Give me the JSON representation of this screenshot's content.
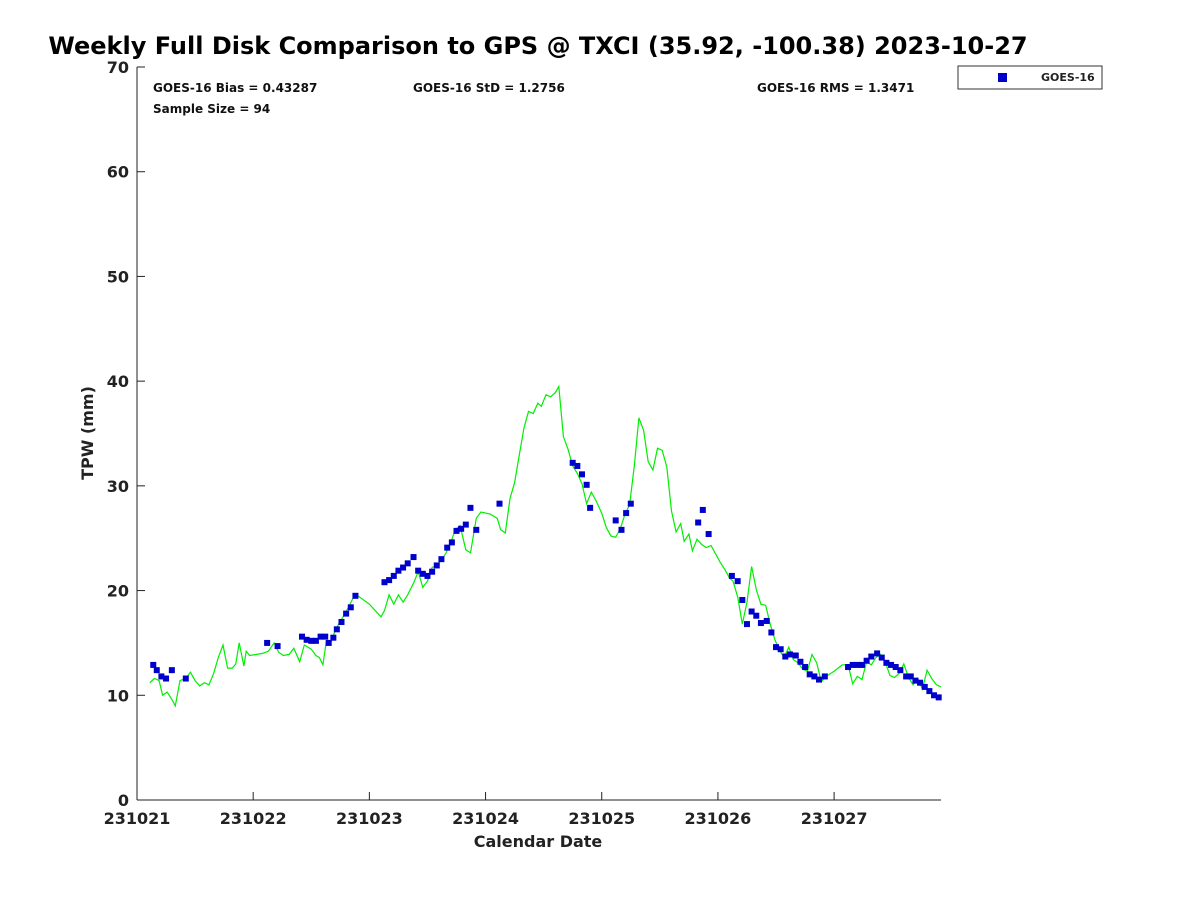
{
  "chart_data": {
    "type": "scatter",
    "title": "Weekly Full Disk Comparison to GPS @ TXCI (35.92, -100.38) 2023-10-27",
    "xlabel": "Calendar Date",
    "ylabel": "TPW (mm)",
    "xlim": [
      21.0,
      27.92
    ],
    "ylim": [
      0,
      70
    ],
    "x_tick_values": [
      21,
      22,
      23,
      24,
      25,
      26,
      27
    ],
    "x_tick_labels": [
      "231021",
      "231022",
      "231023",
      "231024",
      "231025",
      "231026",
      "231027"
    ],
    "y_ticks": [
      0,
      10,
      20,
      30,
      40,
      50,
      60,
      70
    ],
    "grid": false,
    "legend": {
      "position": "top-right",
      "entries": [
        "GOES-16"
      ]
    },
    "stats": {
      "bias": "GOES-16 Bias = 0.43287",
      "std": "GOES-16 StD = 1.2756",
      "rms": "GOES-16 RMS = 1.3471",
      "sample_size": "Sample Size = 94"
    },
    "series": [
      {
        "name": "GOES-16",
        "kind": "scatter",
        "color": "#0000cc",
        "points": [
          [
            21.14,
            12.9
          ],
          [
            21.17,
            12.4
          ],
          [
            21.21,
            11.8
          ],
          [
            21.25,
            11.6
          ],
          [
            21.3,
            12.4
          ],
          [
            21.42,
            11.6
          ],
          [
            22.12,
            15.0
          ],
          [
            22.21,
            14.7
          ],
          [
            22.42,
            15.6
          ],
          [
            22.46,
            15.3
          ],
          [
            22.5,
            15.2
          ],
          [
            22.54,
            15.2
          ],
          [
            22.58,
            15.6
          ],
          [
            22.62,
            15.6
          ],
          [
            22.65,
            15.0
          ],
          [
            22.69,
            15.5
          ],
          [
            22.72,
            16.3
          ],
          [
            22.76,
            17.0
          ],
          [
            22.8,
            17.8
          ],
          [
            22.84,
            18.4
          ],
          [
            22.88,
            19.5
          ],
          [
            23.13,
            20.8
          ],
          [
            23.17,
            21.0
          ],
          [
            23.21,
            21.4
          ],
          [
            23.25,
            21.9
          ],
          [
            23.29,
            22.2
          ],
          [
            23.33,
            22.6
          ],
          [
            23.38,
            23.2
          ],
          [
            23.42,
            21.9
          ],
          [
            23.46,
            21.6
          ],
          [
            23.5,
            21.4
          ],
          [
            23.54,
            21.8
          ],
          [
            23.58,
            22.4
          ],
          [
            23.62,
            23.0
          ],
          [
            23.67,
            24.1
          ],
          [
            23.71,
            24.6
          ],
          [
            23.75,
            25.7
          ],
          [
            23.79,
            25.9
          ],
          [
            23.83,
            26.3
          ],
          [
            23.87,
            27.9
          ],
          [
            23.92,
            25.8
          ],
          [
            24.12,
            28.3
          ],
          [
            24.75,
            32.2
          ],
          [
            24.79,
            31.9
          ],
          [
            24.83,
            31.1
          ],
          [
            24.87,
            30.1
          ],
          [
            24.9,
            27.9
          ],
          [
            25.12,
            26.7
          ],
          [
            25.17,
            25.8
          ],
          [
            25.21,
            27.4
          ],
          [
            25.25,
            28.3
          ],
          [
            25.83,
            26.5
          ],
          [
            25.87,
            27.7
          ],
          [
            25.92,
            25.4
          ],
          [
            26.12,
            21.4
          ],
          [
            26.17,
            20.9
          ],
          [
            26.21,
            19.1
          ],
          [
            26.25,
            16.8
          ],
          [
            26.29,
            18.0
          ],
          [
            26.33,
            17.6
          ],
          [
            26.37,
            16.9
          ],
          [
            26.42,
            17.1
          ],
          [
            26.46,
            16.0
          ],
          [
            26.5,
            14.6
          ],
          [
            26.54,
            14.4
          ],
          [
            26.58,
            13.7
          ],
          [
            26.62,
            13.9
          ],
          [
            26.67,
            13.8
          ],
          [
            26.71,
            13.2
          ],
          [
            26.75,
            12.7
          ],
          [
            26.79,
            12.0
          ],
          [
            26.83,
            11.8
          ],
          [
            26.87,
            11.5
          ],
          [
            26.92,
            11.8
          ],
          [
            27.12,
            12.7
          ],
          [
            27.16,
            12.9
          ],
          [
            27.2,
            12.9
          ],
          [
            27.24,
            12.9
          ],
          [
            27.28,
            13.3
          ],
          [
            27.32,
            13.7
          ],
          [
            27.37,
            14.0
          ],
          [
            27.41,
            13.6
          ],
          [
            27.45,
            13.1
          ],
          [
            27.49,
            12.9
          ],
          [
            27.53,
            12.7
          ],
          [
            27.57,
            12.4
          ],
          [
            27.62,
            11.8
          ],
          [
            27.66,
            11.8
          ],
          [
            27.7,
            11.4
          ],
          [
            27.74,
            11.2
          ],
          [
            27.78,
            10.8
          ],
          [
            27.82,
            10.4
          ],
          [
            27.86,
            10.0
          ],
          [
            27.9,
            9.8
          ]
        ]
      },
      {
        "name": "",
        "kind": "line",
        "color": "#00ee00",
        "points": [
          [
            21.11,
            11.2
          ],
          [
            21.15,
            11.6
          ],
          [
            21.19,
            11.4
          ],
          [
            21.22,
            10.0
          ],
          [
            21.26,
            10.3
          ],
          [
            21.3,
            9.6
          ],
          [
            21.33,
            9.0
          ],
          [
            21.37,
            11.4
          ],
          [
            21.42,
            11.6
          ],
          [
            21.46,
            12.2
          ],
          [
            21.5,
            11.4
          ],
          [
            21.54,
            10.9
          ],
          [
            21.58,
            11.2
          ],
          [
            21.62,
            11.0
          ],
          [
            21.66,
            12.1
          ],
          [
            21.7,
            13.6
          ],
          [
            21.74,
            14.8
          ],
          [
            21.78,
            12.6
          ],
          [
            21.82,
            12.6
          ],
          [
            21.85,
            13.0
          ],
          [
            21.88,
            15.0
          ],
          [
            21.92,
            12.8
          ],
          [
            21.94,
            14.2
          ],
          [
            21.97,
            13.8
          ],
          [
            22.03,
            13.9
          ],
          [
            22.08,
            14.0
          ],
          [
            22.13,
            14.2
          ],
          [
            22.18,
            15.0
          ],
          [
            22.22,
            14.1
          ],
          [
            22.26,
            13.8
          ],
          [
            22.31,
            13.9
          ],
          [
            22.35,
            14.5
          ],
          [
            22.4,
            13.2
          ],
          [
            22.44,
            14.8
          ],
          [
            22.47,
            14.6
          ],
          [
            22.5,
            14.4
          ],
          [
            22.54,
            13.8
          ],
          [
            22.57,
            13.6
          ],
          [
            22.6,
            12.9
          ],
          [
            22.63,
            15.2
          ],
          [
            22.67,
            15.1
          ],
          [
            22.7,
            16.0
          ],
          [
            22.74,
            16.9
          ],
          [
            22.78,
            17.6
          ],
          [
            22.82,
            18.4
          ],
          [
            22.86,
            19.3
          ],
          [
            22.9,
            19.5
          ],
          [
            23.0,
            18.7
          ],
          [
            23.1,
            17.5
          ],
          [
            23.13,
            18.1
          ],
          [
            23.17,
            19.6
          ],
          [
            23.21,
            18.7
          ],
          [
            23.25,
            19.6
          ],
          [
            23.29,
            18.9
          ],
          [
            23.33,
            19.6
          ],
          [
            23.38,
            20.7
          ],
          [
            23.42,
            21.8
          ],
          [
            23.46,
            20.3
          ],
          [
            23.5,
            20.9
          ],
          [
            23.54,
            22.2
          ],
          [
            23.58,
            22.4
          ],
          [
            23.62,
            22.9
          ],
          [
            23.66,
            23.6
          ],
          [
            23.7,
            24.6
          ],
          [
            23.74,
            25.8
          ],
          [
            23.78,
            26.2
          ],
          [
            23.83,
            23.9
          ],
          [
            23.87,
            23.6
          ],
          [
            23.92,
            26.9
          ],
          [
            23.96,
            27.5
          ],
          [
            24.04,
            27.3
          ],
          [
            24.1,
            26.9
          ],
          [
            24.13,
            25.8
          ],
          [
            24.17,
            25.5
          ],
          [
            24.21,
            28.8
          ],
          [
            24.25,
            30.3
          ],
          [
            24.29,
            32.9
          ],
          [
            24.33,
            35.5
          ],
          [
            24.37,
            37.1
          ],
          [
            24.41,
            36.9
          ],
          [
            24.45,
            37.9
          ],
          [
            24.48,
            37.6
          ],
          [
            24.52,
            38.7
          ],
          [
            24.56,
            38.5
          ],
          [
            24.6,
            38.9
          ],
          [
            24.63,
            39.5
          ],
          [
            24.67,
            34.7
          ],
          [
            24.71,
            33.5
          ],
          [
            24.75,
            31.9
          ],
          [
            24.79,
            31.2
          ],
          [
            24.83,
            30.2
          ],
          [
            24.87,
            28.3
          ],
          [
            24.91,
            29.4
          ],
          [
            24.95,
            28.6
          ],
          [
            25.0,
            27.4
          ],
          [
            25.04,
            26.0
          ],
          [
            25.08,
            25.2
          ],
          [
            25.12,
            25.1
          ],
          [
            25.16,
            25.9
          ],
          [
            25.2,
            27.3
          ],
          [
            25.24,
            28.2
          ],
          [
            25.28,
            31.9
          ],
          [
            25.32,
            36.5
          ],
          [
            25.36,
            35.3
          ],
          [
            25.4,
            32.3
          ],
          [
            25.44,
            31.5
          ],
          [
            25.48,
            33.6
          ],
          [
            25.52,
            33.4
          ],
          [
            25.56,
            31.8
          ],
          [
            25.6,
            27.6
          ],
          [
            25.64,
            25.6
          ],
          [
            25.68,
            26.4
          ],
          [
            25.71,
            24.7
          ],
          [
            25.75,
            25.4
          ],
          [
            25.78,
            23.8
          ],
          [
            25.82,
            24.9
          ],
          [
            25.86,
            24.4
          ],
          [
            25.9,
            24.1
          ],
          [
            25.94,
            24.3
          ],
          [
            25.98,
            23.5
          ],
          [
            26.02,
            22.7
          ],
          [
            26.06,
            22.0
          ],
          [
            26.1,
            21.2
          ],
          [
            26.13,
            20.9
          ],
          [
            26.17,
            19.4
          ],
          [
            26.21,
            16.8
          ],
          [
            26.25,
            18.9
          ],
          [
            26.29,
            22.3
          ],
          [
            26.33,
            20.1
          ],
          [
            26.37,
            18.7
          ],
          [
            26.41,
            18.6
          ],
          [
            26.45,
            16.8
          ],
          [
            26.49,
            15.3
          ],
          [
            26.53,
            14.3
          ],
          [
            26.57,
            13.6
          ],
          [
            26.61,
            14.6
          ],
          [
            26.65,
            13.4
          ],
          [
            26.69,
            13.1
          ],
          [
            26.73,
            12.5
          ],
          [
            26.77,
            12.3
          ],
          [
            26.81,
            13.9
          ],
          [
            26.85,
            13.1
          ],
          [
            26.89,
            11.3
          ],
          [
            26.93,
            11.8
          ],
          [
            27.0,
            12.3
          ],
          [
            27.07,
            12.9
          ],
          [
            27.12,
            12.9
          ],
          [
            27.16,
            11.1
          ],
          [
            27.2,
            11.8
          ],
          [
            27.24,
            11.5
          ],
          [
            27.28,
            13.2
          ],
          [
            27.32,
            12.9
          ],
          [
            27.36,
            13.6
          ],
          [
            27.4,
            13.9
          ],
          [
            27.44,
            13.2
          ],
          [
            27.48,
            11.9
          ],
          [
            27.52,
            11.7
          ],
          [
            27.56,
            12.1
          ],
          [
            27.6,
            13.0
          ],
          [
            27.64,
            11.7
          ],
          [
            27.68,
            11.0
          ],
          [
            27.72,
            11.6
          ],
          [
            27.76,
            10.6
          ],
          [
            27.8,
            12.4
          ],
          [
            27.84,
            11.6
          ],
          [
            27.88,
            11.0
          ],
          [
            27.92,
            10.8
          ]
        ]
      }
    ]
  }
}
